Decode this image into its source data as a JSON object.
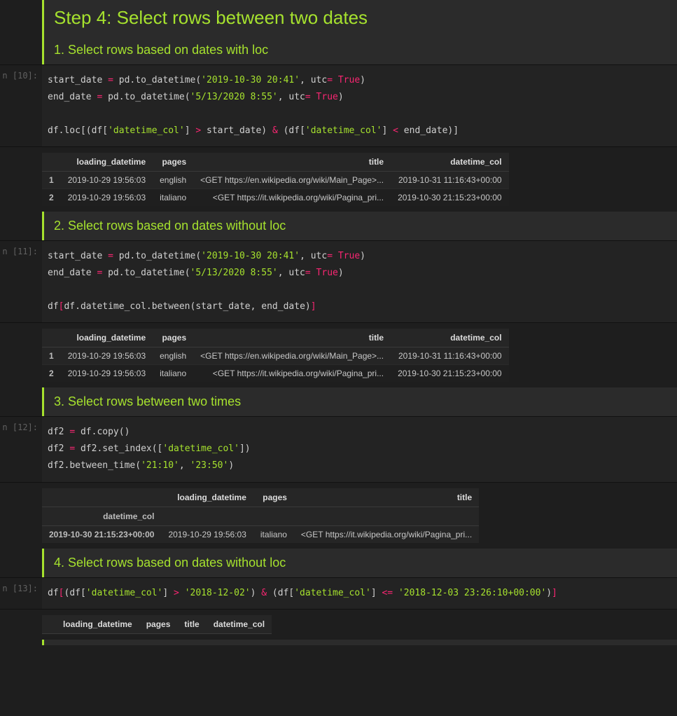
{
  "colors": {
    "accent": "#a6e22e",
    "bg": "#1e1e1e",
    "code_bg": "#232323",
    "cell_bg": "#2b2b2b",
    "op": "#f92672",
    "string": "#a6e22e",
    "number": "#ae81ff",
    "text": "#d0d0d0"
  },
  "title": "Step 4: Select rows between two dates",
  "sections": [
    {
      "num": "1.",
      "text": "Select rows based on dates with loc"
    },
    {
      "num": "2.",
      "text": "Select rows based on dates without loc"
    },
    {
      "num": "3.",
      "text": "Select rows between two times"
    },
    {
      "num": "4.",
      "text": "Select rows based on dates without loc"
    }
  ],
  "prompts": {
    "c10": "n [10]:",
    "c11": "n [11]:",
    "c12": "n [12]:",
    "c13": "n [13]:"
  },
  "code": {
    "c10": {
      "date1": "'2019-10-30 20:41'",
      "date2": "'5/13/2020 8:55'",
      "col": "'datetime_col'"
    },
    "c11": {
      "date1": "'2019-10-30 20:41'",
      "date2": "'5/13/2020 8:55'"
    },
    "c12": {
      "col": "'datetime_col'",
      "t1": "'21:10'",
      "t2": "'23:50'"
    },
    "c13": {
      "col": "'datetime_col'",
      "d1": "'2018-12-02'",
      "d2": "'2018-12-03 23:26:10+00:00'"
    }
  },
  "tables": {
    "t10": {
      "columns": [
        "loading_datetime",
        "pages",
        "title",
        "datetime_col"
      ],
      "index": [
        "1",
        "2"
      ],
      "rows": [
        [
          "2019-10-29 19:56:03",
          "english",
          "<GET https://en.wikipedia.org/wiki/Main_Page>...",
          "2019-10-31 11:16:43+00:00"
        ],
        [
          "2019-10-29 19:56:03",
          "italiano",
          "<GET https://it.wikipedia.org/wiki/Pagina_pri...",
          "2019-10-30 21:15:23+00:00"
        ]
      ]
    },
    "t11": {
      "columns": [
        "loading_datetime",
        "pages",
        "title",
        "datetime_col"
      ],
      "index": [
        "1",
        "2"
      ],
      "rows": [
        [
          "2019-10-29 19:56:03",
          "english",
          "<GET https://en.wikipedia.org/wiki/Main_Page>...",
          "2019-10-31 11:16:43+00:00"
        ],
        [
          "2019-10-29 19:56:03",
          "italiano",
          "<GET https://it.wikipedia.org/wiki/Pagina_pri...",
          "2019-10-30 21:15:23+00:00"
        ]
      ]
    },
    "t12": {
      "columns": [
        "loading_datetime",
        "pages",
        "title"
      ],
      "index_name": "datetime_col",
      "index": [
        "2019-10-30 21:15:23+00:00"
      ],
      "rows": [
        [
          "2019-10-29 19:56:03",
          "italiano",
          "<GET https://it.wikipedia.org/wiki/Pagina_pri..."
        ]
      ]
    },
    "t13": {
      "columns": [
        "loading_datetime",
        "pages",
        "title",
        "datetime_col"
      ],
      "index": [],
      "rows": []
    }
  }
}
